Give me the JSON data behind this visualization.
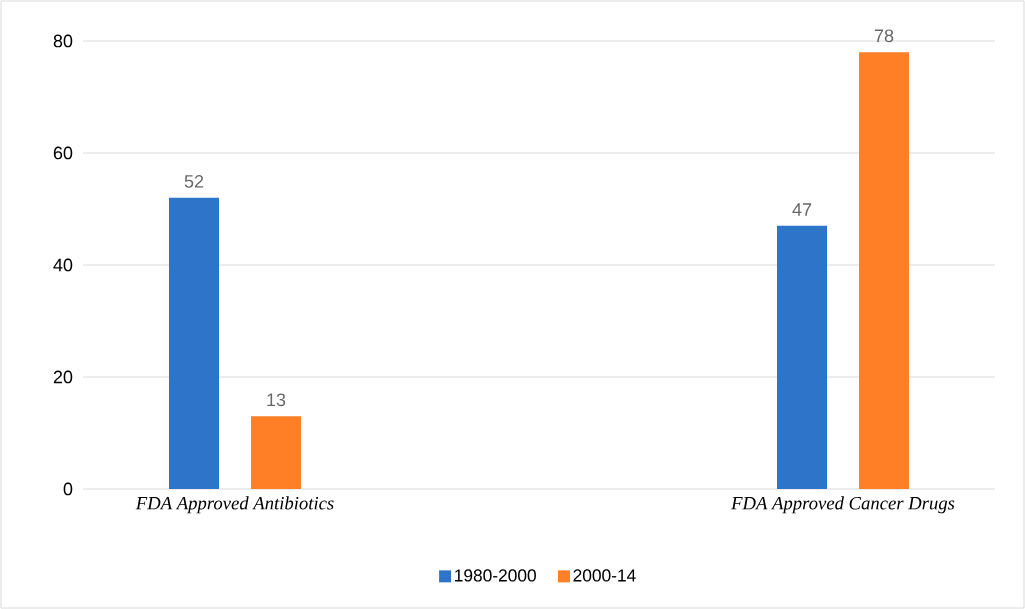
{
  "chart_data": {
    "type": "bar",
    "categories": [
      "FDA Approved Antibiotics",
      "FDA Approved Cancer Drugs"
    ],
    "series": [
      {
        "name": "1980-2000",
        "color": "#2e75c9",
        "values": [
          52,
          47
        ]
      },
      {
        "name": "2000-14",
        "color": "#ff7f27",
        "values": [
          13,
          78
        ]
      }
    ],
    "ylim": [
      0,
      80
    ],
    "yticks": [
      0,
      20,
      40,
      60,
      80
    ],
    "grid": "y",
    "legend": "bottom",
    "data_labels": true
  }
}
